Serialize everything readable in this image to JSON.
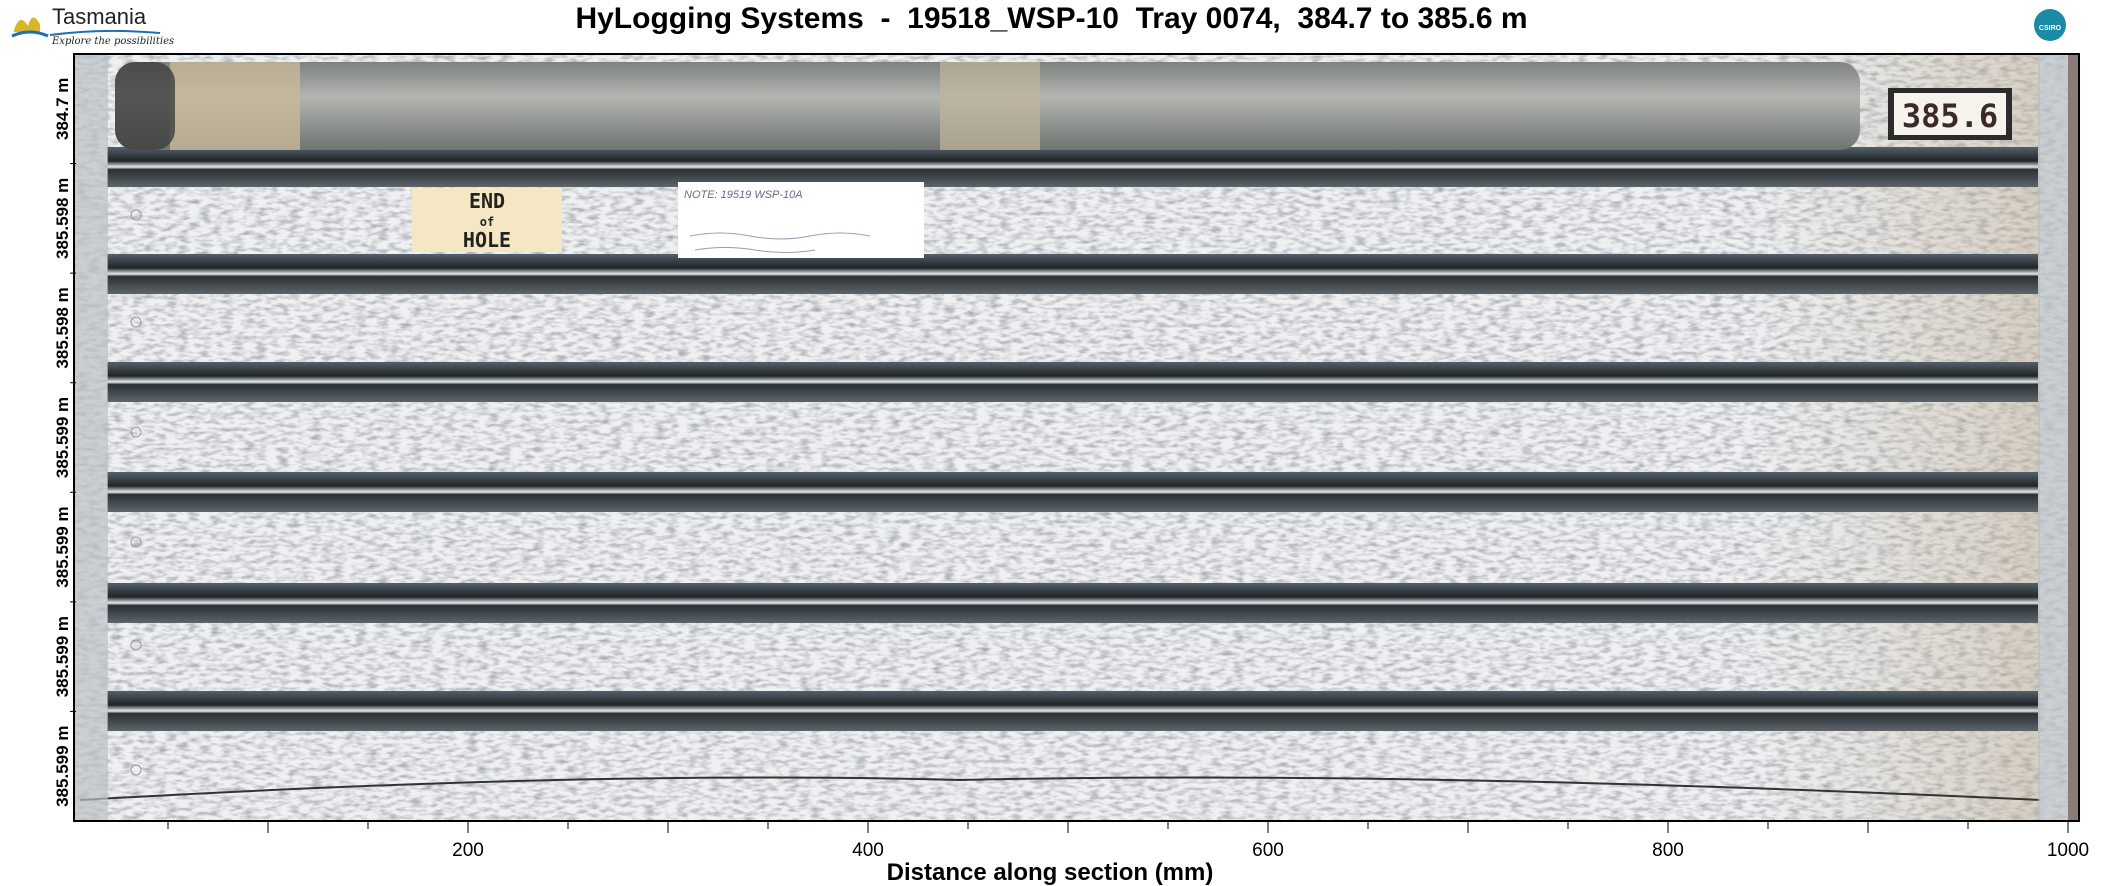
{
  "header": {
    "title": "HyLogging Systems  -  19518_WSP-10  Tray 0074,  384.7 to 385.6 m",
    "logo_name": "Tasmania",
    "logo_tagline": "Explore the possibilities",
    "csiro_label": "CSIRO"
  },
  "y_axis": {
    "row_labels": [
      "384.7 m",
      "385.598 m",
      "385.598 m",
      "385.599 m",
      "385.599 m",
      "385.599 m",
      "385.599 m"
    ]
  },
  "x_axis": {
    "title": "Distance along section (mm)",
    "tick_labels": [
      "200",
      "400",
      "600",
      "800",
      "1000"
    ],
    "tick_values": [
      200,
      400,
      600,
      800,
      1000
    ],
    "minor_step": 50,
    "range_mm": [
      3,
      1005
    ]
  },
  "tray": {
    "depth_tag": "385.6",
    "end_label": [
      "END",
      "of",
      "HOLE"
    ],
    "note_line": "NOTE: 19519 WSP-10A",
    "colors": {
      "metal": "#d9dde0",
      "channel": "#2c3337",
      "core": "#a9aca6",
      "core_light": "#c8b89a",
      "tag_bg": "#f5e6c4"
    }
  }
}
